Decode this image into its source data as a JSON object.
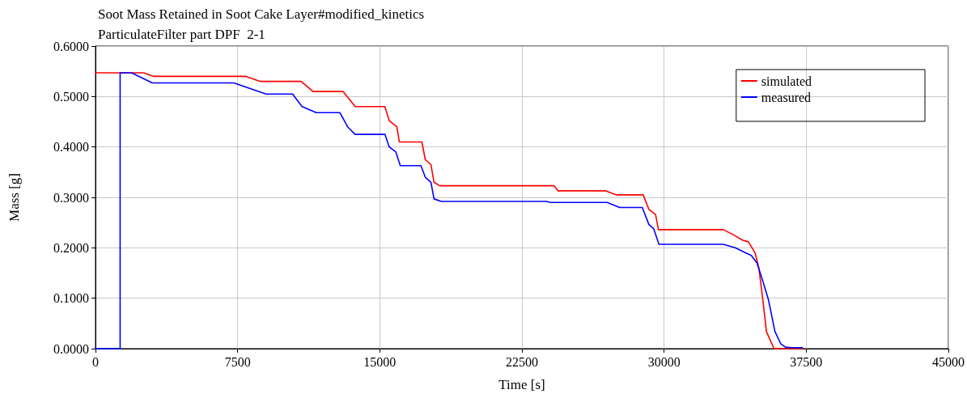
{
  "chart_data": {
    "type": "line",
    "title": "Soot Mass Retained in Soot Cake Layer#modified_kinetics",
    "subtitle": "ParticulateFilter part DPF  2-1",
    "xlabel": "Time [s]",
    "ylabel": "Mass [g]",
    "xlim": [
      0,
      45000
    ],
    "xticks": [
      0,
      7500,
      15000,
      22500,
      30000,
      37500,
      45000
    ],
    "ylim": [
      0,
      0.6
    ],
    "yticks": [
      {
        "value": 0,
        "label": "0.0000"
      },
      {
        "value": 0.1,
        "label": "0.1000"
      },
      {
        "value": 0.2,
        "label": "0.2000"
      },
      {
        "value": 0.3,
        "label": "0.3000"
      },
      {
        "value": 0.4,
        "label": "0.4000"
      },
      {
        "value": 0.5,
        "label": "0.5000"
      },
      {
        "value": 0.6,
        "label": "0.6000"
      }
    ],
    "grid": true,
    "legend": "top right",
    "marker": "none",
    "line_style": "solid",
    "series": [
      {
        "name": "simulated",
        "color": "#ff0000",
        "x": [
          0,
          2550,
          3060,
          7950,
          8700,
          10850,
          11480,
          13060,
          13700,
          15270,
          15500,
          15900,
          16030,
          17220,
          17400,
          17700,
          17860,
          18160,
          24200,
          24400,
          26920,
          27500,
          28900,
          29200,
          29550,
          29700,
          33130,
          33650,
          34150,
          34450,
          34800,
          35000,
          35200,
          35400,
          35800,
          37300
        ],
        "values": [
          0.547,
          0.547,
          0.54,
          0.54,
          0.53,
          0.53,
          0.51,
          0.51,
          0.48,
          0.48,
          0.452,
          0.44,
          0.41,
          0.41,
          0.375,
          0.365,
          0.33,
          0.323,
          0.323,
          0.313,
          0.313,
          0.305,
          0.305,
          0.276,
          0.266,
          0.236,
          0.236,
          0.226,
          0.215,
          0.212,
          0.19,
          0.16,
          0.1,
          0.034,
          0,
          0
        ]
      },
      {
        "name": "measured",
        "color": "#0000ff",
        "x": [
          0,
          1300,
          1300,
          1900,
          3000,
          7300,
          9000,
          10400,
          10900,
          11650,
          12900,
          13300,
          13700,
          15270,
          15500,
          15850,
          16080,
          17170,
          17400,
          17700,
          17860,
          18250,
          23800,
          24000,
          27000,
          27650,
          28850,
          29200,
          29450,
          29730,
          33130,
          33750,
          34300,
          34600,
          34900,
          35150,
          35500,
          35850,
          36150,
          36400,
          36700,
          37300
        ],
        "values": [
          0,
          0,
          0.547,
          0.547,
          0.527,
          0.527,
          0.505,
          0.505,
          0.48,
          0.468,
          0.468,
          0.44,
          0.425,
          0.425,
          0.4,
          0.39,
          0.363,
          0.363,
          0.34,
          0.33,
          0.297,
          0.292,
          0.292,
          0.29,
          0.29,
          0.28,
          0.28,
          0.246,
          0.238,
          0.207,
          0.207,
          0.2,
          0.19,
          0.185,
          0.17,
          0.141,
          0.098,
          0.034,
          0.01,
          0.003,
          0.002,
          0.002
        ]
      }
    ]
  }
}
